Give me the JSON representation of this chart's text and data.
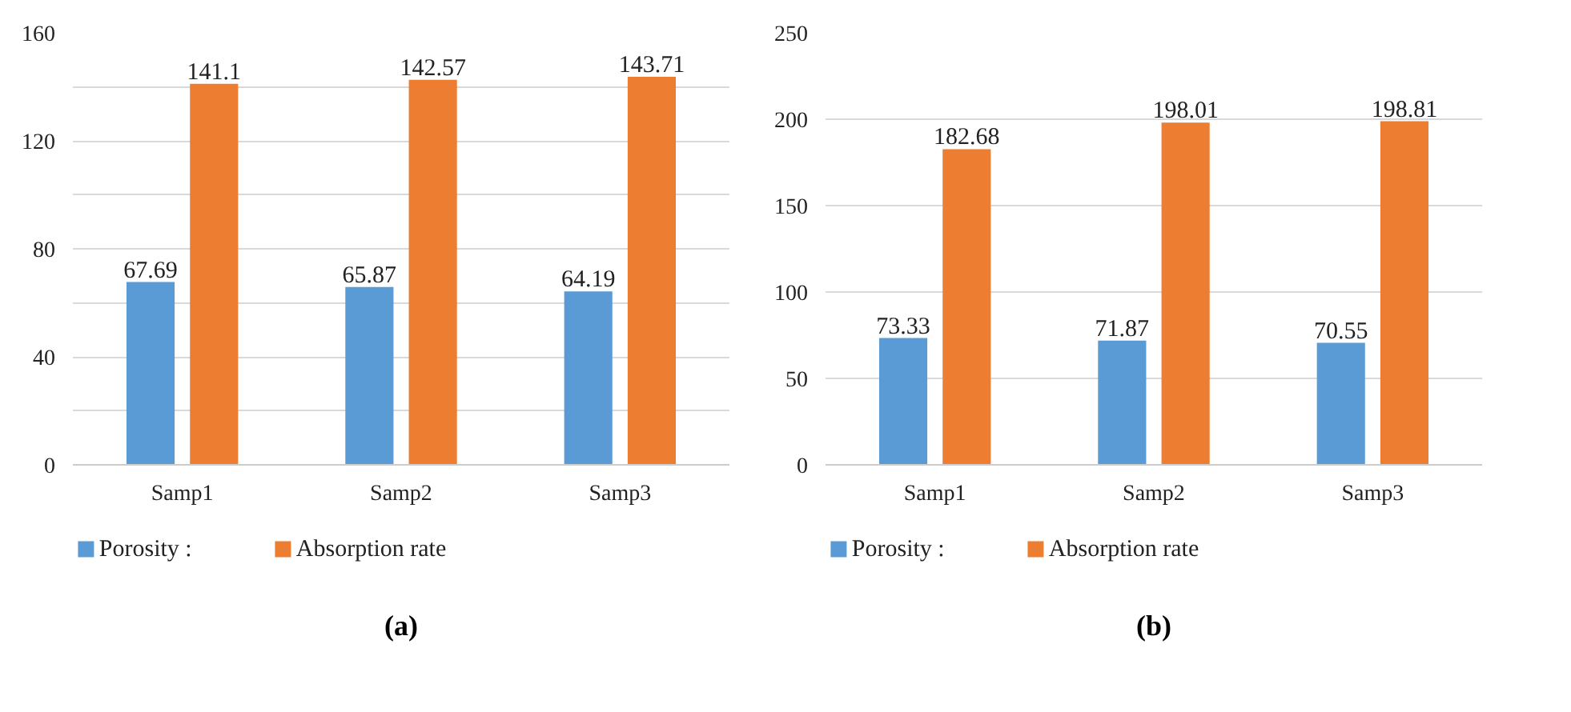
{
  "chart_data": [
    {
      "type": "bar",
      "categories": [
        "Samp1",
        "Samp2",
        "Samp3"
      ],
      "series": [
        {
          "name": "Porosity :",
          "color": "#5b9bd5",
          "values": [
            67.69,
            65.87,
            64.19
          ]
        },
        {
          "name": "Absorption rate",
          "color": "#ed7d31",
          "values": [
            141.1,
            142.57,
            143.71
          ]
        }
      ],
      "ylim": [
        0,
        160
      ],
      "yticks": [
        0,
        {
          "value": 20,
          "label": null
        },
        40,
        {
          "value": 60,
          "label": null
        },
        80,
        {
          "value": 100,
          "label": null
        },
        120,
        {
          "value": 140,
          "label": null
        },
        160
      ],
      "grid": "y",
      "legend": "bottom",
      "data_labels": true,
      "annotations": [
        "(a)"
      ]
    },
    {
      "type": "bar",
      "categories": [
        "Samp1",
        "Samp2",
        "Samp3"
      ],
      "series": [
        {
          "name": "Porosity :",
          "color": "#5b9bd5",
          "values": [
            73.33,
            71.87,
            70.55
          ]
        },
        {
          "name": "Absorption rate",
          "color": "#ed7d31",
          "values": [
            182.68,
            198.01,
            198.81
          ]
        }
      ],
      "ylim": [
        0,
        250
      ],
      "yticks": [
        0,
        50,
        100,
        150,
        200,
        250
      ],
      "grid": "y",
      "legend": "bottom",
      "data_labels": true,
      "annotations": [
        "(b)"
      ]
    }
  ]
}
